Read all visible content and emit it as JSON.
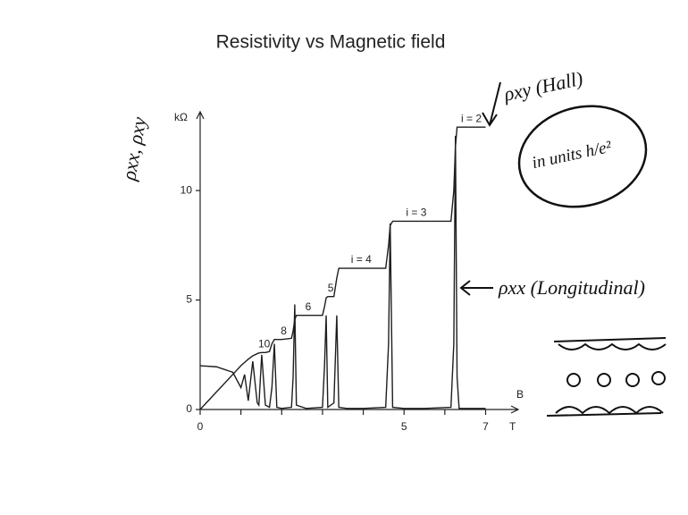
{
  "chart_data": {
    "type": "line",
    "title": "Resistivity vs Magnetic field",
    "ylabel": "kΩ",
    "xlabel": "B",
    "xunit": "T",
    "x": [
      0,
      0.4,
      0.8,
      1.0,
      1.09,
      1.18,
      1.29,
      1.4,
      1.44,
      1.51,
      1.6,
      1.7,
      1.76,
      1.82,
      1.88,
      2.0,
      2.24,
      2.28,
      2.32,
      2.36,
      2.6,
      3.0,
      3.05,
      3.09,
      3.13,
      3.28,
      3.35,
      3.4,
      3.6,
      4.0,
      4.55,
      4.62,
      4.66,
      4.72,
      5.0,
      5.5,
      6.15,
      6.22,
      6.26,
      6.3,
      6.35,
      7.0
    ],
    "series": [
      {
        "color": "#1e1e1e",
        "values": [
          0,
          0.8,
          1.6,
          2.0,
          2.15,
          2.3,
          2.45,
          2.55,
          2.58,
          2.6,
          2.6,
          2.65,
          3.0,
          3.2,
          3.2,
          3.2,
          3.25,
          3.6,
          4.1,
          4.3,
          4.3,
          4.3,
          4.7,
          5.1,
          5.16,
          5.16,
          6.0,
          6.45,
          6.45,
          6.45,
          6.45,
          7.5,
          8.4,
          8.6,
          8.6,
          8.6,
          8.6,
          10,
          12,
          12.9,
          12.9,
          12.9
        ]
      },
      {
        "color": "#1e1e1e",
        "values": [
          2.0,
          1.95,
          1.7,
          1.0,
          1.6,
          0.4,
          2.2,
          0.3,
          0.2,
          2.5,
          0.2,
          0.1,
          1.0,
          3.0,
          0.1,
          0.05,
          0.1,
          1.5,
          4.8,
          0.2,
          0.05,
          0.1,
          2.0,
          4.3,
          0.1,
          0.3,
          4.3,
          0.1,
          0.05,
          0.05,
          0.1,
          3,
          8.5,
          0.1,
          0.05,
          0.05,
          0.1,
          3,
          12.5,
          1.5,
          0.05,
          0.05
        ]
      }
    ],
    "xlim": [
      0,
      7.8
    ],
    "xticks": [
      0,
      5,
      7
    ],
    "xminor_ticks": [
      1,
      2,
      3,
      4,
      6
    ],
    "ylim": [
      0,
      13.6
    ],
    "yticks": [
      0,
      5,
      10
    ],
    "plateau_labels": [
      {
        "text": "i = 2",
        "x": 6.65,
        "y": 12.9
      },
      {
        "text": "i = 3",
        "x": 5.3,
        "y": 8.6
      },
      {
        "text": "i = 4",
        "x": 3.95,
        "y": 6.45
      },
      {
        "text": "5",
        "x": 3.2,
        "y": 5.16
      },
      {
        "text": "6",
        "x": 2.65,
        "y": 4.3
      },
      {
        "text": "8",
        "x": 2.05,
        "y": 3.2
      },
      {
        "text": "10",
        "x": 1.57,
        "y": 2.6
      }
    ]
  },
  "annotations": {
    "y_axis": "ρxx, ρxy",
    "hall": "ρxy (Hall)",
    "units": "in units h/e²",
    "longitudinal": "ρxx (Longitudinal)"
  }
}
